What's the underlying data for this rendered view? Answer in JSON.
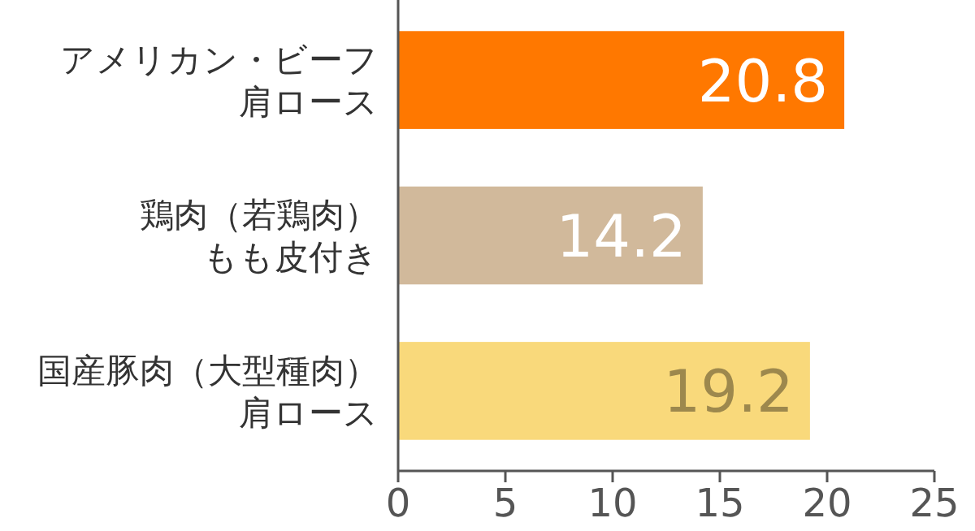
{
  "chart_data": {
    "type": "bar",
    "orientation": "horizontal",
    "categories": [
      "アメリカン・ビーフ肩ロース",
      "鶏肉（若鶏肉）もも皮付き",
      "国産豚肉（大型種肉）肩ロース"
    ],
    "values": [
      20.8,
      14.2,
      19.2
    ],
    "colors": [
      "#ff7800",
      "#d1b99b",
      "#f9d97b"
    ],
    "xlim": [
      0,
      25
    ],
    "xticks": [
      0,
      5,
      10,
      15,
      20,
      25
    ],
    "data_labels": true,
    "grid": false
  }
}
